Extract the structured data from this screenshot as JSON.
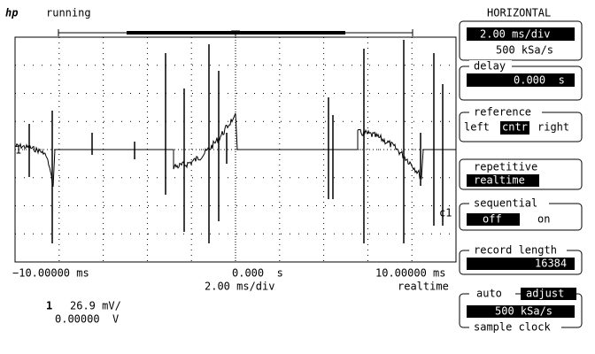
{
  "header": {
    "logo": "hp",
    "status": "running"
  },
  "panel": {
    "title": "HORIZONTAL",
    "time_base": "2.00 ms/div",
    "sample_rate": "500 kSa/s",
    "delay": {
      "label": "delay",
      "value": "0.000  s"
    },
    "reference": {
      "label": "reference",
      "options": [
        "left",
        "cntr",
        "right"
      ]
    },
    "repetitive": {
      "label": "repetitive",
      "value": "realtime"
    },
    "sequential": {
      "label": "sequential",
      "options": [
        "off",
        "on"
      ]
    },
    "record_length": {
      "label": "record length",
      "value": "16384"
    },
    "sample_clock": {
      "mode": "auto",
      "action": "adjust",
      "value": "500 kSa/s",
      "label": "sample clock"
    }
  },
  "axis": {
    "left": "−10.00000 ms",
    "center": "0.000  s",
    "right": "10.00000 ms",
    "scale": "2.00 ms/div",
    "mode": "realtime"
  },
  "channel": {
    "number": "1",
    "scale": "26.9 mV/",
    "offset": "0.00000  V",
    "marker": "c1"
  }
}
